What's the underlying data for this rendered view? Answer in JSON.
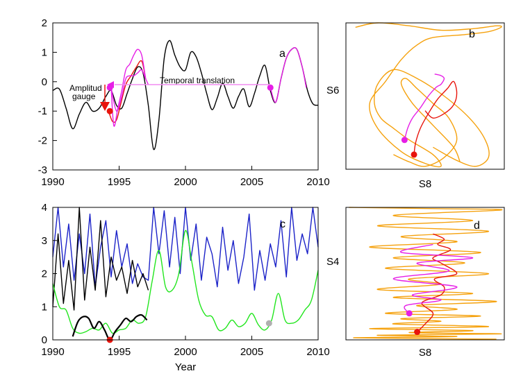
{
  "colors": {
    "black": "#000000",
    "red": "#e8140c",
    "magenta": "#e61ee6",
    "orange": "#f5a10c",
    "blue": "#1b22c8",
    "green": "#22e61e",
    "pink_line": "#f08cf0",
    "gray_dot": "#b0b0b0"
  },
  "chart_data": [
    {
      "id": "a",
      "type": "line",
      "panel_label": "a",
      "xlim": [
        1990,
        2010
      ],
      "ylim": [
        -3,
        2
      ],
      "xticks": [
        "1990",
        "1995",
        "2000",
        "2005",
        "2010"
      ],
      "yticks": [
        "-3",
        "-2",
        "-1",
        "0",
        "1",
        "2"
      ],
      "annotations": {
        "amplitude": "Amplitud gauge",
        "amplitude_line1": "Amplitud",
        "amplitude_line2": "gauge",
        "temporal": "Temporal translation"
      },
      "series": [
        {
          "color": "black",
          "x": [
            1990.0,
            1990.5,
            1991.0,
            1991.5,
            1992.0,
            1992.5,
            1993.0,
            1993.5,
            1994.0,
            1994.4,
            1994.8,
            1995.2,
            1995.6,
            1996.0,
            1996.4,
            1996.8,
            1997.2,
            1997.6,
            1998.0,
            1998.4,
            1998.8,
            1999.2,
            1999.6,
            2000.0,
            2000.4,
            2000.8,
            2001.2,
            2001.6,
            2002.0,
            2002.4,
            2002.8,
            2003.2,
            2003.6,
            2004.0,
            2004.4,
            2004.8,
            2005.2,
            2005.6,
            2006.0,
            2006.4,
            2006.8,
            2007.2,
            2007.6,
            2008.0,
            2008.4,
            2008.8,
            2009.2,
            2009.6,
            2010.0
          ],
          "y": [
            -0.3,
            -0.25,
            -0.9,
            -1.6,
            -1.1,
            -0.7,
            -1.0,
            -0.9,
            -0.5,
            -0.3,
            -0.8,
            -0.9,
            -0.4,
            0.1,
            0.5,
            0.3,
            -0.8,
            -2.3,
            -1.3,
            0.8,
            1.4,
            0.9,
            0.5,
            0.4,
            1.0,
            0.85,
            0.3,
            -0.4,
            -0.95,
            -0.55,
            -0.05,
            -0.5,
            -0.9,
            -0.5,
            -0.25,
            -0.85,
            -0.4,
            0.2,
            0.55,
            -0.3,
            -0.7,
            0.1,
            0.8,
            1.1,
            1.1,
            0.5,
            -0.3,
            -0.75,
            -0.8
          ]
        },
        {
          "color": "red",
          "x": [
            1994.2,
            1994.5,
            1994.8,
            1995.1,
            1995.5,
            1995.9,
            1996.3,
            1996.7,
            1997.0
          ],
          "y": [
            -1.0,
            -1.35,
            -1.3,
            -0.8,
            -0.1,
            0.2,
            0.5,
            0.7,
            0.1
          ]
        },
        {
          "color": "magenta",
          "x": [
            1994.4,
            1994.6,
            1994.9,
            1995.2,
            1995.5,
            1995.8,
            1996.1,
            1996.4,
            1996.7,
            1997.0
          ],
          "y": [
            -0.2,
            -1.5,
            -0.9,
            -0.3,
            0.4,
            0.6,
            0.9,
            1.1,
            0.9,
            0.1
          ]
        },
        {
          "color": "magenta",
          "x": [
            1994.4,
            1994.8,
            1995.2,
            1995.5,
            1995.8,
            1996.1,
            1996.4,
            1996.7,
            1997.0,
            1997.2
          ],
          "y": [
            -0.2,
            -1.0,
            -0.5,
            0.1,
            0.2,
            0.2,
            0.3,
            0.4,
            0.1,
            -0.1
          ]
        },
        {
          "color": "magenta",
          "x": [
            2006.4,
            2006.8,
            2007.2,
            2007.6,
            2008.0,
            2008.4,
            2008.8,
            2009.1
          ],
          "y": [
            -0.2,
            -0.7,
            0.1,
            0.8,
            1.1,
            1.1,
            0.5,
            -0.2
          ]
        }
      ],
      "points": [
        {
          "x": 1994.3,
          "y": -1.0,
          "color": "red"
        },
        {
          "x": 2006.4,
          "y": -0.2,
          "color": "magenta"
        },
        {
          "x": 1994.3,
          "y": -0.2,
          "color": "magenta"
        }
      ]
    },
    {
      "id": "b",
      "type": "line",
      "panel_label": "b",
      "xlabel": "S8",
      "ylabel": "S6",
      "series": [
        {
          "color": "orange",
          "x": [
            0.06,
            0.2,
            0.4,
            0.6,
            0.8,
            0.95,
            0.98,
            0.9,
            0.75,
            0.55,
            0.45,
            0.35,
            0.25,
            0.15,
            0.2,
            0.35,
            0.5,
            0.6,
            0.55,
            0.4,
            0.3,
            0.22,
            0.18,
            0.2,
            0.3,
            0.45,
            0.62,
            0.78,
            0.88,
            0.9,
            0.82,
            0.7,
            0.55
          ],
          "y": [
            0.97,
            1.0,
            0.98,
            0.95,
            0.96,
            0.98,
            0.97,
            0.94,
            0.92,
            0.9,
            0.85,
            0.75,
            0.6,
            0.45,
            0.28,
            0.12,
            0.04,
            0.02,
            0.1,
            0.2,
            0.28,
            0.35,
            0.45,
            0.58,
            0.68,
            0.62,
            0.5,
            0.35,
            0.2,
            0.08,
            0.02,
            0.06,
            0.15
          ]
        },
        {
          "color": "orange",
          "x": [
            0.3,
            0.4,
            0.5,
            0.62,
            0.7,
            0.65,
            0.55,
            0.45,
            0.38,
            0.35,
            0.42,
            0.55,
            0.68,
            0.72
          ],
          "y": [
            0.1,
            0.05,
            0.02,
            0.08,
            0.2,
            0.35,
            0.45,
            0.55,
            0.62,
            0.58,
            0.45,
            0.3,
            0.15,
            0.05
          ]
        },
        {
          "color": "red",
          "x": [
            0.43,
            0.44,
            0.47,
            0.52,
            0.58,
            0.64,
            0.68,
            0.7,
            0.68,
            0.62,
            0.55,
            0.5
          ],
          "y": [
            0.1,
            0.18,
            0.28,
            0.38,
            0.48,
            0.55,
            0.6,
            0.52,
            0.44,
            0.38,
            0.35,
            0.4
          ]
        },
        {
          "color": "magenta",
          "x": [
            0.37,
            0.39,
            0.42,
            0.47,
            0.52,
            0.57,
            0.6,
            0.62,
            0.6,
            0.56
          ],
          "y": [
            0.2,
            0.28,
            0.35,
            0.42,
            0.5,
            0.56,
            0.58,
            0.62,
            0.64,
            0.65
          ]
        }
      ],
      "points": [
        {
          "x": 0.43,
          "y": 0.1,
          "color": "red"
        },
        {
          "x": 0.37,
          "y": 0.2,
          "color": "magenta"
        }
      ]
    },
    {
      "id": "c",
      "type": "line",
      "panel_label": "c",
      "xlabel": "Year",
      "xlim": [
        1990,
        2010
      ],
      "ylim": [
        0,
        4
      ],
      "xticks": [
        "1990",
        "1995",
        "2000",
        "2005",
        "2010"
      ],
      "yticks": [
        "0",
        "1",
        "2",
        "3",
        "4"
      ],
      "series": [
        {
          "color": "blue",
          "x": [
            1990.0,
            1990.4,
            1990.8,
            1991.2,
            1991.6,
            1992.0,
            1992.4,
            1992.8,
            1993.2,
            1993.6,
            1994.0,
            1994.4,
            1994.8,
            1995.2,
            1995.6,
            1996.0,
            1996.4,
            1996.8,
            1997.2,
            1997.6,
            1998.0,
            1998.4,
            1998.8,
            1999.2,
            1999.6,
            2000.0,
            2000.4,
            2000.8,
            2001.2,
            2001.6,
            2002.0,
            2002.4,
            2002.8,
            2003.2,
            2003.6,
            2004.0,
            2004.4,
            2004.8,
            2005.2,
            2005.6,
            2006.0,
            2006.4,
            2006.8,
            2007.2,
            2007.6,
            2008.0,
            2008.4,
            2008.8,
            2009.2,
            2009.6,
            2010.0
          ],
          "y": [
            2.5,
            4.0,
            2.2,
            3.5,
            1.8,
            3.2,
            2.0,
            3.8,
            1.6,
            2.8,
            3.6,
            1.9,
            3.3,
            2.2,
            2.9,
            1.7,
            2.3,
            1.9,
            1.8,
            4.0,
            2.6,
            3.9,
            2.2,
            3.7,
            2.0,
            4.0,
            2.4,
            3.5,
            1.8,
            3.1,
            2.6,
            1.6,
            3.4,
            2.1,
            3.0,
            1.7,
            2.5,
            3.8,
            1.5,
            2.7,
            1.8,
            2.9,
            2.2,
            3.6,
            1.9,
            4.0,
            2.4,
            3.2,
            2.6,
            4.0,
            2.8
          ]
        },
        {
          "color": "black",
          "x": [
            1990.0,
            1990.4,
            1990.8,
            1991.2,
            1991.6,
            1992.0,
            1992.4,
            1992.8,
            1993.2,
            1993.6,
            1994.0,
            1994.4,
            1994.8,
            1995.2,
            1995.6,
            1996.0,
            1996.4,
            1996.8,
            1997.2
          ],
          "y": [
            1.0,
            3.2,
            1.1,
            2.4,
            0.9,
            4.0,
            1.2,
            2.8,
            1.5,
            3.6,
            1.3,
            2.5,
            1.8,
            2.2,
            1.4,
            2.4,
            1.6,
            2.0,
            1.5
          ]
        },
        {
          "color": "green",
          "x": [
            1990.0,
            1990.5,
            1991.0,
            1991.5,
            1992.0,
            1992.5,
            1993.0,
            1993.5,
            1994.0,
            1994.5,
            1995.0,
            1995.5,
            1996.0,
            1996.5,
            1997.0,
            1997.5,
            1998.0,
            1998.5,
            1999.0,
            1999.5,
            2000.0,
            2000.5,
            2001.0,
            2001.5,
            2002.0,
            2002.5,
            2003.0,
            2003.5,
            2004.0,
            2004.5,
            2005.0,
            2005.5,
            2006.0,
            2006.5,
            2007.0,
            2007.5,
            2008.0,
            2008.5,
            2009.0,
            2009.5,
            2010.0
          ],
          "y": [
            1.7,
            1.0,
            0.9,
            0.35,
            0.2,
            0.25,
            0.35,
            0.3,
            0.5,
            0.2,
            0.3,
            0.35,
            0.6,
            0.5,
            0.7,
            1.8,
            2.7,
            1.6,
            1.5,
            2.0,
            3.3,
            2.3,
            1.2,
            0.75,
            0.7,
            0.3,
            0.35,
            0.6,
            0.4,
            0.5,
            0.8,
            0.45,
            0.3,
            0.6,
            1.4,
            0.6,
            0.5,
            0.6,
            0.9,
            1.2,
            2.1
          ]
        },
        {
          "color": "black",
          "x": [
            1991.5,
            1991.9,
            1992.3,
            1992.7,
            1993.1,
            1993.5,
            1993.9,
            1994.3,
            1994.7,
            1995.1,
            1995.5,
            1995.9,
            1996.3,
            1996.7,
            1997.1
          ],
          "y": [
            0.1,
            0.55,
            0.7,
            0.65,
            0.35,
            0.55,
            0.3,
            0.0,
            0.25,
            0.45,
            0.65,
            0.55,
            0.7,
            0.75,
            0.6
          ]
        }
      ],
      "points": [
        {
          "x": 1994.3,
          "y": 0.0,
          "color": "red"
        },
        {
          "x": 2006.3,
          "y": 0.5,
          "color": "gray_dot"
        }
      ]
    },
    {
      "id": "d",
      "type": "line",
      "panel_label": "d",
      "xlabel": "S8",
      "ylabel": "S4",
      "series": [
        {
          "color": "orange",
          "x": [
            0.02,
            0.6,
            0.98,
            0.3,
            0.8,
            0.2,
            0.9,
            0.35,
            0.7,
            0.15,
            0.85,
            0.3,
            0.75,
            0.25,
            0.9,
            0.4,
            0.6,
            0.2,
            0.8,
            0.3,
            0.95,
            0.45,
            0.7,
            0.25,
            0.85,
            0.35,
            0.6,
            0.3,
            0.9,
            0.15,
            0.8,
            0.4,
            0.98,
            0.2,
            0.7,
            0.05,
            0.95
          ],
          "y": [
            1.0,
            0.99,
            0.98,
            0.94,
            0.9,
            0.86,
            0.82,
            0.78,
            0.74,
            0.7,
            0.66,
            0.62,
            0.58,
            0.54,
            0.5,
            0.46,
            0.42,
            0.38,
            0.35,
            0.32,
            0.29,
            0.26,
            0.23,
            0.2,
            0.18,
            0.16,
            0.14,
            0.12,
            0.1,
            0.085,
            0.07,
            0.055,
            0.045,
            0.035,
            0.025,
            0.015,
            0.005
          ]
        },
        {
          "color": "red",
          "x": [
            0.45,
            0.5,
            0.55,
            0.48,
            0.6,
            0.62,
            0.56,
            0.7,
            0.6,
            0.55,
            0.66,
            0.58,
            0.62,
            0.55
          ],
          "y": [
            0.06,
            0.12,
            0.2,
            0.28,
            0.34,
            0.4,
            0.46,
            0.5,
            0.58,
            0.62,
            0.68,
            0.72,
            0.76,
            0.8
          ]
        },
        {
          "color": "magenta",
          "x": [
            0.4,
            0.38,
            0.6,
            0.42,
            0.7,
            0.3,
            0.65,
            0.45,
            0.8,
            0.35,
            0.55
          ],
          "y": [
            0.2,
            0.26,
            0.3,
            0.34,
            0.4,
            0.46,
            0.52,
            0.58,
            0.62,
            0.66,
            0.72
          ]
        }
      ],
      "points": [
        {
          "x": 0.45,
          "y": 0.06,
          "color": "red"
        },
        {
          "x": 0.4,
          "y": 0.2,
          "color": "magenta"
        }
      ]
    }
  ]
}
